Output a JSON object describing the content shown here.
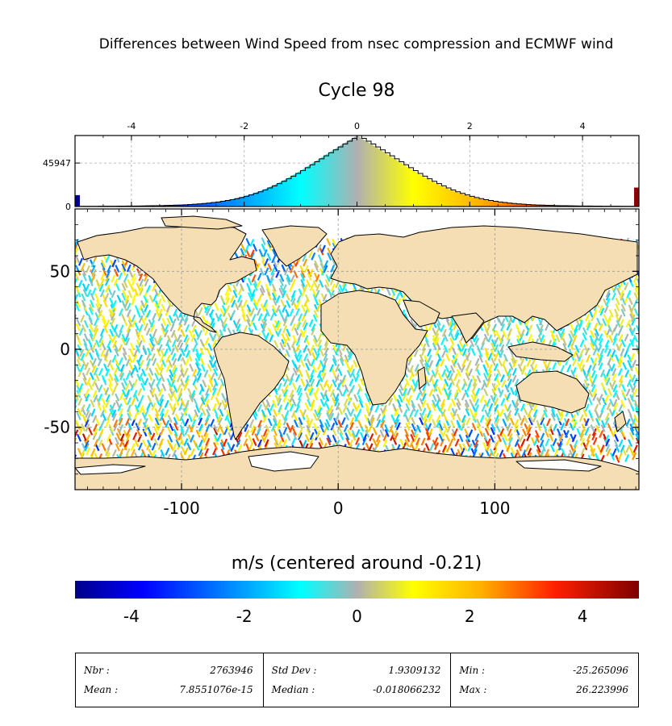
{
  "figure": {
    "suptitle": "Differences between Wind Speed from nsec compression and ECMWF wind",
    "title": "Cycle 98"
  },
  "chart_data": [
    {
      "type": "histogram",
      "x_ticks": [
        "-4",
        "-2",
        "0",
        "2",
        "4"
      ],
      "x_tick_values": [
        -4,
        -2,
        0,
        2,
        4
      ],
      "xlim": [
        -5,
        5
      ],
      "y_ticks": [
        "0",
        "45947"
      ],
      "y_tick_values": [
        0,
        45947
      ],
      "ylim": [
        0,
        75000
      ],
      "grid": true,
      "peak_x": 0.0,
      "peak_count": 75000,
      "underflow_bin_count": 12000,
      "overflow_bin_count": 20000,
      "colors": {
        "low": "#00008b",
        "mid": "#b0b0b0",
        "high": "#8b0000"
      }
    },
    {
      "type": "map",
      "x_ticks": [
        "-100",
        "0",
        "100"
      ],
      "x_tick_values": [
        -100,
        0,
        100
      ],
      "xlim": [
        -168,
        192
      ],
      "y_ticks": [
        "50",
        "0",
        "-50"
      ],
      "y_tick_values": [
        50,
        0,
        -50
      ],
      "ylim": [
        -90,
        90
      ],
      "grid": true,
      "land_color": "#f5deb3",
      "ocean_background": "#ffffff",
      "data_coverage": "satellite ground tracks colored by wind speed difference"
    }
  ],
  "colorbar": {
    "label": "m/s (centered around -0.21)",
    "ticks": [
      "-4",
      "-2",
      "0",
      "2",
      "4"
    ],
    "tick_values": [
      -4,
      -2,
      0,
      2,
      4
    ],
    "range": [
      -5,
      5
    ]
  },
  "stats": [
    {
      "label1": "Nbr :",
      "value1": "2763946",
      "label2": "Mean :",
      "value2": "7.8551076e-15"
    },
    {
      "label1": "Std Dev :",
      "value1": "1.9309132",
      "label2": "Median :",
      "value2": "-0.018066232"
    },
    {
      "label1": "Min :",
      "value1": "-25.265096",
      "label2": "Max :",
      "value2": "26.223996"
    }
  ]
}
